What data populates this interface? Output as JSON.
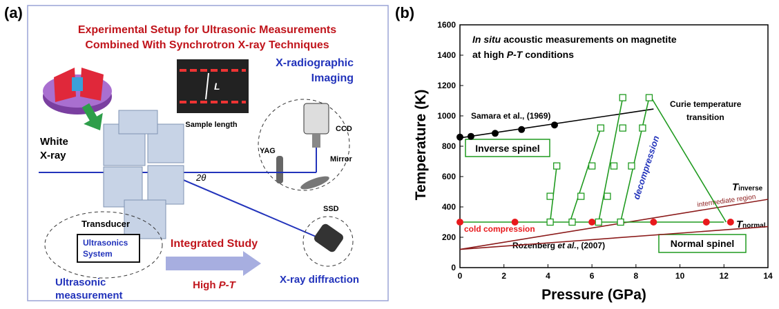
{
  "panel_a": {
    "label": "(a)",
    "title_lines": [
      "Experimental Setup for Ultrasonic Measurements",
      "Combined With Synchrotron X-ray Techniques"
    ],
    "imaging_lines": [
      "X-radiographic",
      "Imaging"
    ],
    "length_symbol": "L",
    "sample_length": "Sample length",
    "ccd": "CCD",
    "white_xray_lines": [
      "White",
      "X-ray"
    ],
    "yag": "YAG",
    "mirror": "Mirror",
    "angle": "2θ",
    "ssd": "SSD",
    "transducer": "Transducer",
    "ultrasonics_system_lines": [
      "Ultrasonics",
      "System"
    ],
    "integrated_study": "Integrated Study",
    "high_pt": [
      "High ",
      "P-T"
    ],
    "xray_diffraction": "X-ray diffraction",
    "ultrasonic_measurement_lines": [
      "Ultrasonic",
      "measurement"
    ]
  },
  "chart_data": {
    "type": "line",
    "panel_label": "(b)",
    "x_label": "Pressure (GPa)",
    "y_label": "Temperature (K)",
    "xlim": [
      0,
      14
    ],
    "xticks": [
      0,
      2,
      4,
      6,
      8,
      10,
      12,
      14
    ],
    "ylim": [
      0,
      1600
    ],
    "yticks": [
      0,
      200,
      400,
      600,
      800,
      1000,
      1200,
      1400,
      1600
    ],
    "grid": false,
    "annotations": {
      "heading_1": [
        "In situ",
        " acoustic measurements on magnetite"
      ],
      "heading_2": [
        "at high ",
        "P-T",
        " conditions"
      ],
      "samara": [
        "Samara et al., (1969)"
      ],
      "curie": [
        "Curie temperature",
        "transition"
      ],
      "inverse_spinel": "Inverse spinel",
      "cold_compression": "cold compression",
      "decompression": "decompression",
      "t_inverse": [
        "T",
        "inverse"
      ],
      "intermediate": "intermediate region",
      "t_normal": [
        "T",
        "normal"
      ],
      "rozenberg": [
        "Rozenberg ",
        "et al.",
        ", (2007)"
      ],
      "normal_spinel": "Normal spinel"
    },
    "series": [
      {
        "color": "#8b1a1a",
        "mode": "line",
        "x": [
          0,
          14
        ],
        "values": [
          120,
          450
        ]
      },
      {
        "color": "#8b1a1a",
        "mode": "line",
        "x": [
          0,
          14
        ],
        "values": [
          120,
          270
        ]
      },
      {
        "color": "#000000",
        "mode": "line",
        "x": [
          0,
          8.8
        ],
        "values": [
          855,
          1045
        ]
      },
      {
        "color": "#000000",
        "mode": "markers",
        "x": [
          0,
          0.5,
          1.6,
          2.8,
          4.3
        ],
        "values": [
          860,
          865,
          885,
          910,
          940
        ]
      },
      {
        "color": "#1f9a1f",
        "mode": "line",
        "x": [
          0,
          12,
          null,
          4.4,
          4.1,
          null,
          6.4,
          5.0,
          null,
          7.4,
          6.3,
          null,
          8.6,
          7.3,
          null,
          12.1,
          8.7
        ],
        "values": [
          300,
          300,
          null,
          670,
          300,
          null,
          920,
          300,
          null,
          1120,
          300,
          null,
          1120,
          300,
          null,
          300,
          1120
        ]
      },
      {
        "color": "#1f9a1f",
        "mode": "squares",
        "x": [
          4.1,
          4.1,
          4.4,
          5.1,
          5.5,
          6.0,
          6.4,
          6.3,
          6.7,
          7.0,
          7.4,
          7.4,
          7.3,
          7.8,
          8.3,
          8.6
        ],
        "values": [
          300,
          470,
          670,
          300,
          470,
          670,
          920,
          300,
          470,
          670,
          920,
          1120,
          300,
          670,
          920,
          1120
        ]
      },
      {
        "color": "#e8191c",
        "mode": "markers",
        "x": [
          0,
          2.5,
          6.0,
          8.8,
          11.2,
          12.3
        ],
        "values": [
          300,
          300,
          300,
          300,
          300,
          300
        ]
      }
    ]
  }
}
